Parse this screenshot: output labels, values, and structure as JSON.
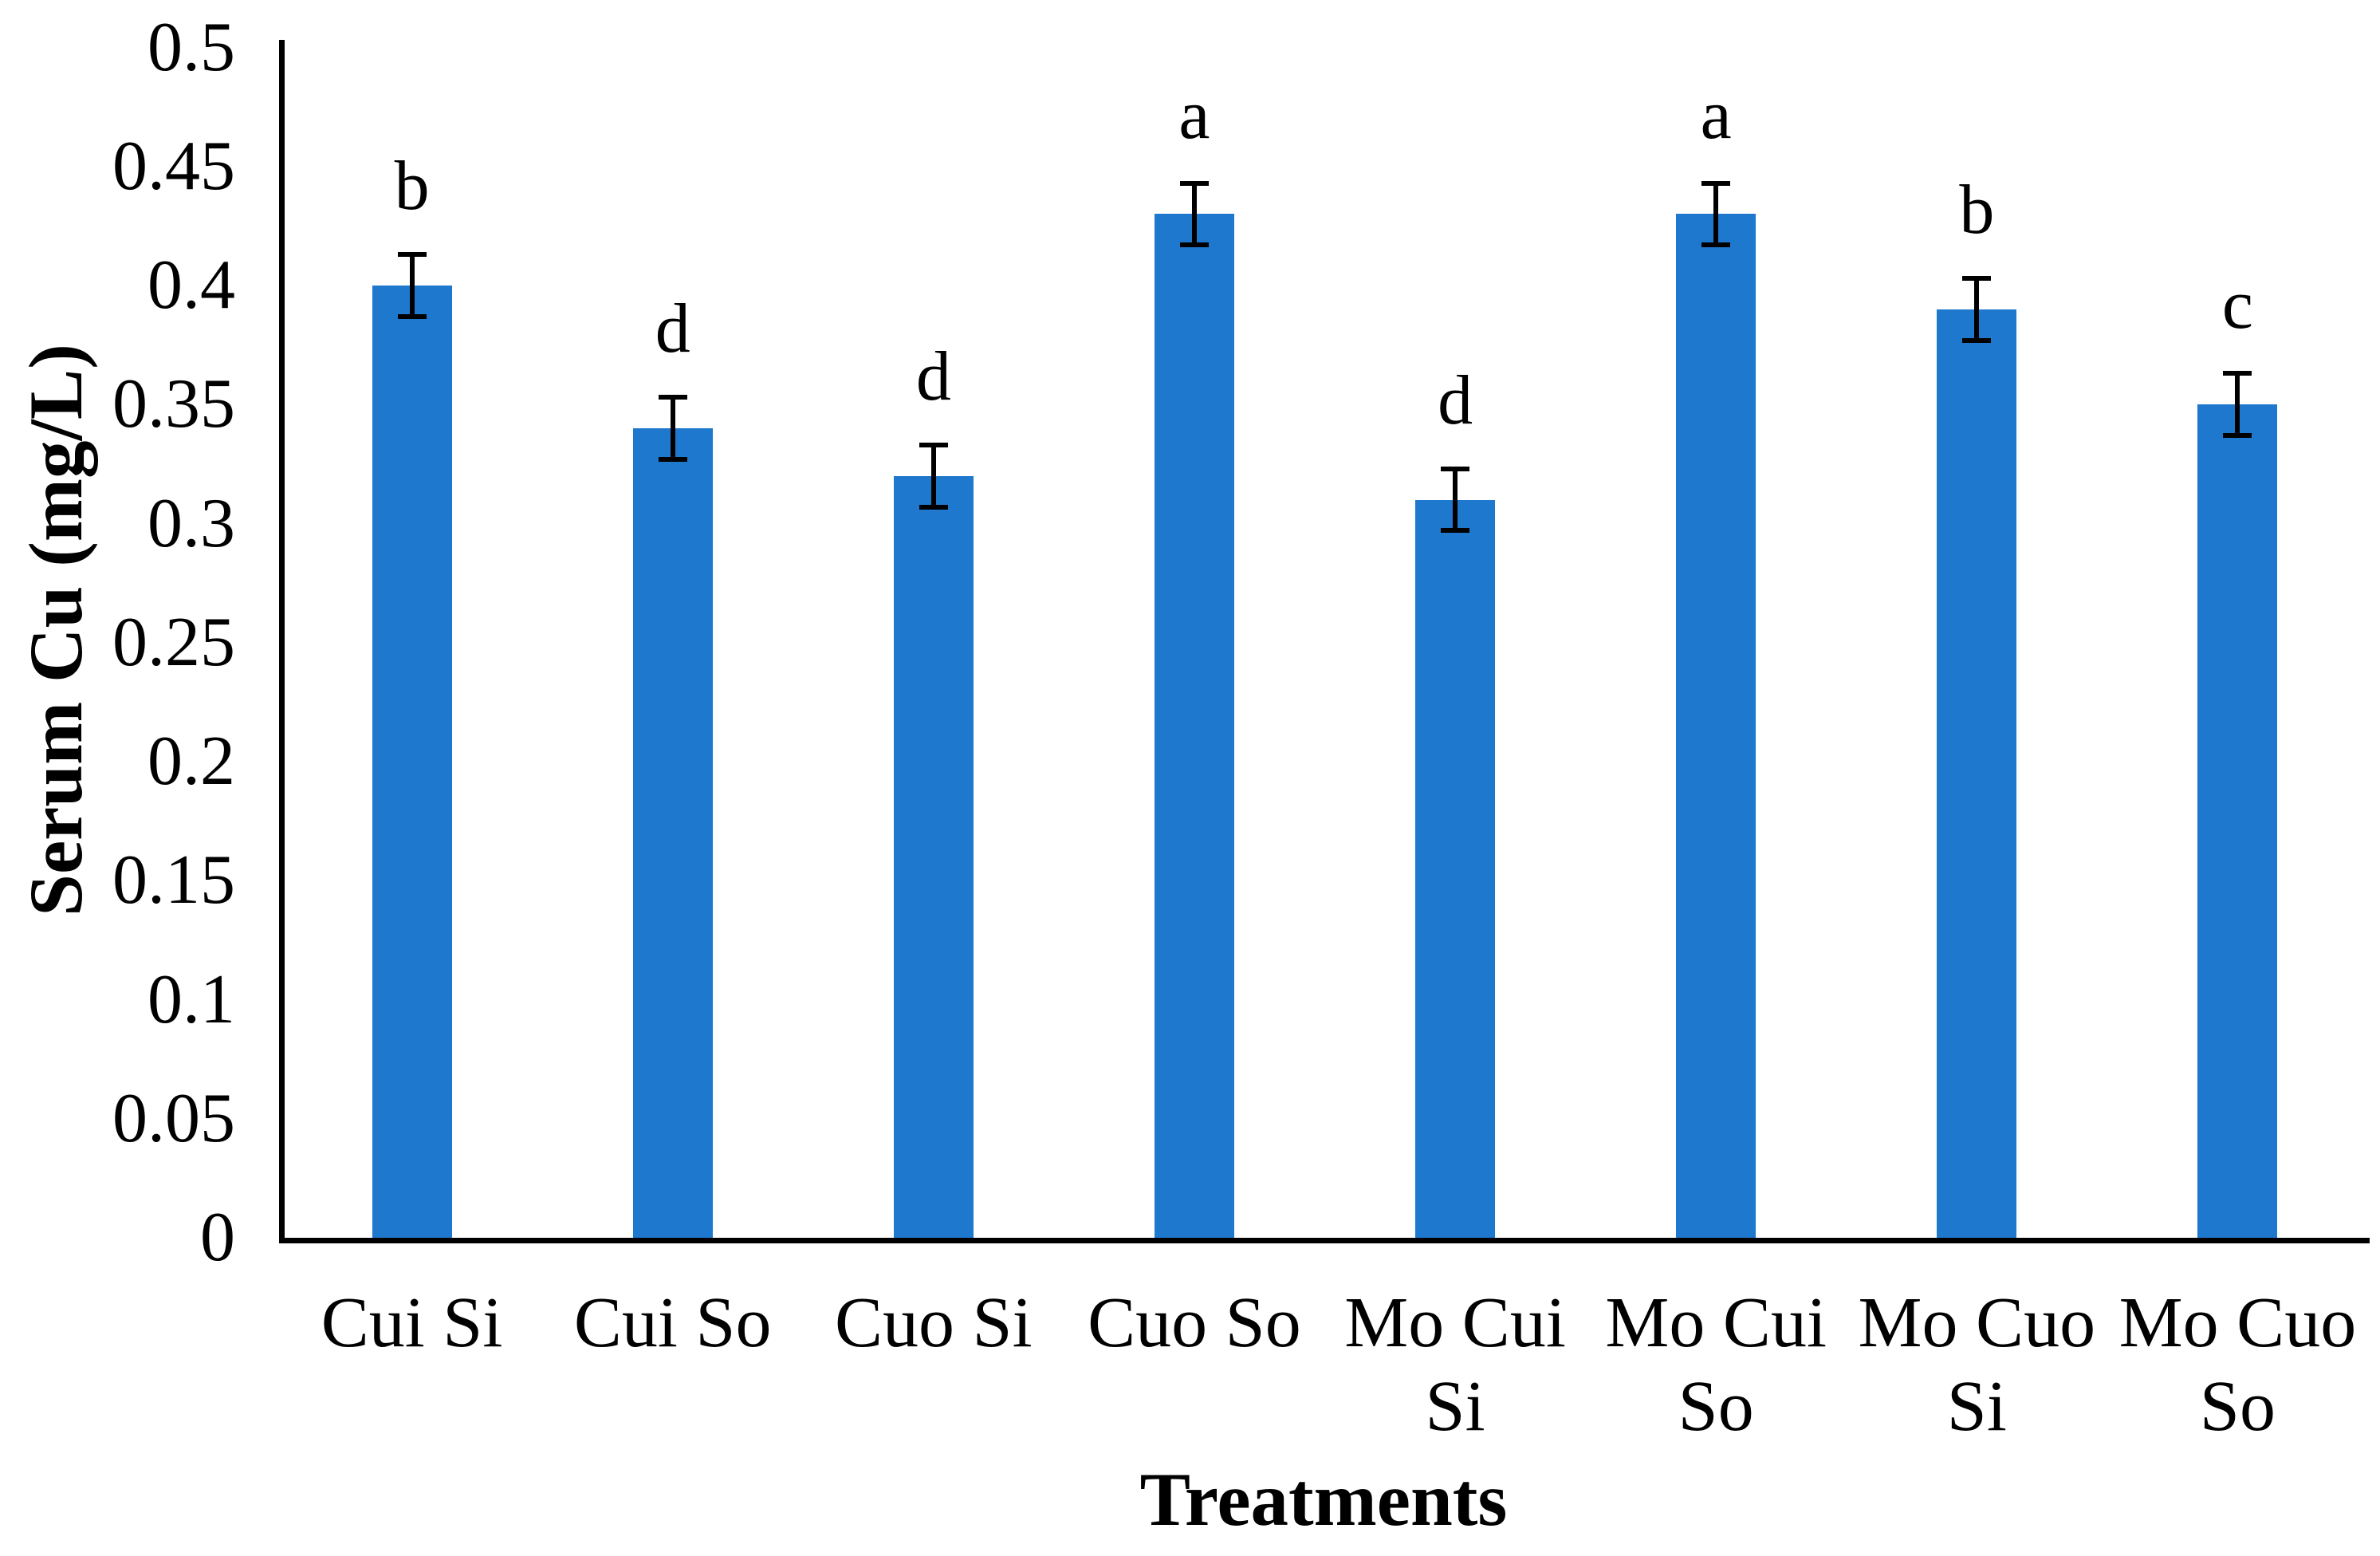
{
  "chart_data": {
    "type": "bar",
    "title": "",
    "xlabel": "Treatments",
    "ylabel": "Serum Cu (mg/L)",
    "ylim": [
      0,
      0.5
    ],
    "ytick_step": 0.05,
    "ytick_labels": [
      "0",
      "0.05",
      "0.1",
      "0.15",
      "0.2",
      "0.25",
      "0.3",
      "0.35",
      "0.4",
      "0.45",
      "0.5"
    ],
    "categories": [
      "Cui Si",
      "Cui So",
      "Cuo Si",
      "Cuo So",
      "Mo Cui Si",
      "Mo Cui So",
      "Mo Cuo Si",
      "Mo Cuo So"
    ],
    "category_label_lines": [
      [
        "Cui Si"
      ],
      [
        "Cui So"
      ],
      [
        "Cuo Si"
      ],
      [
        "Cuo So"
      ],
      [
        "Mo Cui",
        "Si"
      ],
      [
        "Mo Cui",
        "So"
      ],
      [
        "Mo Cuo",
        "Si"
      ],
      [
        "Mo Cuo",
        "So"
      ]
    ],
    "values": [
      0.4,
      0.34,
      0.32,
      0.43,
      0.31,
      0.43,
      0.39,
      0.35
    ],
    "errors": [
      0.013,
      0.013,
      0.013,
      0.013,
      0.013,
      0.013,
      0.013,
      0.013
    ],
    "sig_letters": [
      "b",
      "d",
      "d",
      "a",
      "d",
      "a",
      "b",
      "c"
    ],
    "bar_color": "#1e78ce",
    "axis_color": "#000000",
    "text_color": "#000000",
    "grid": false,
    "legend": false
  }
}
